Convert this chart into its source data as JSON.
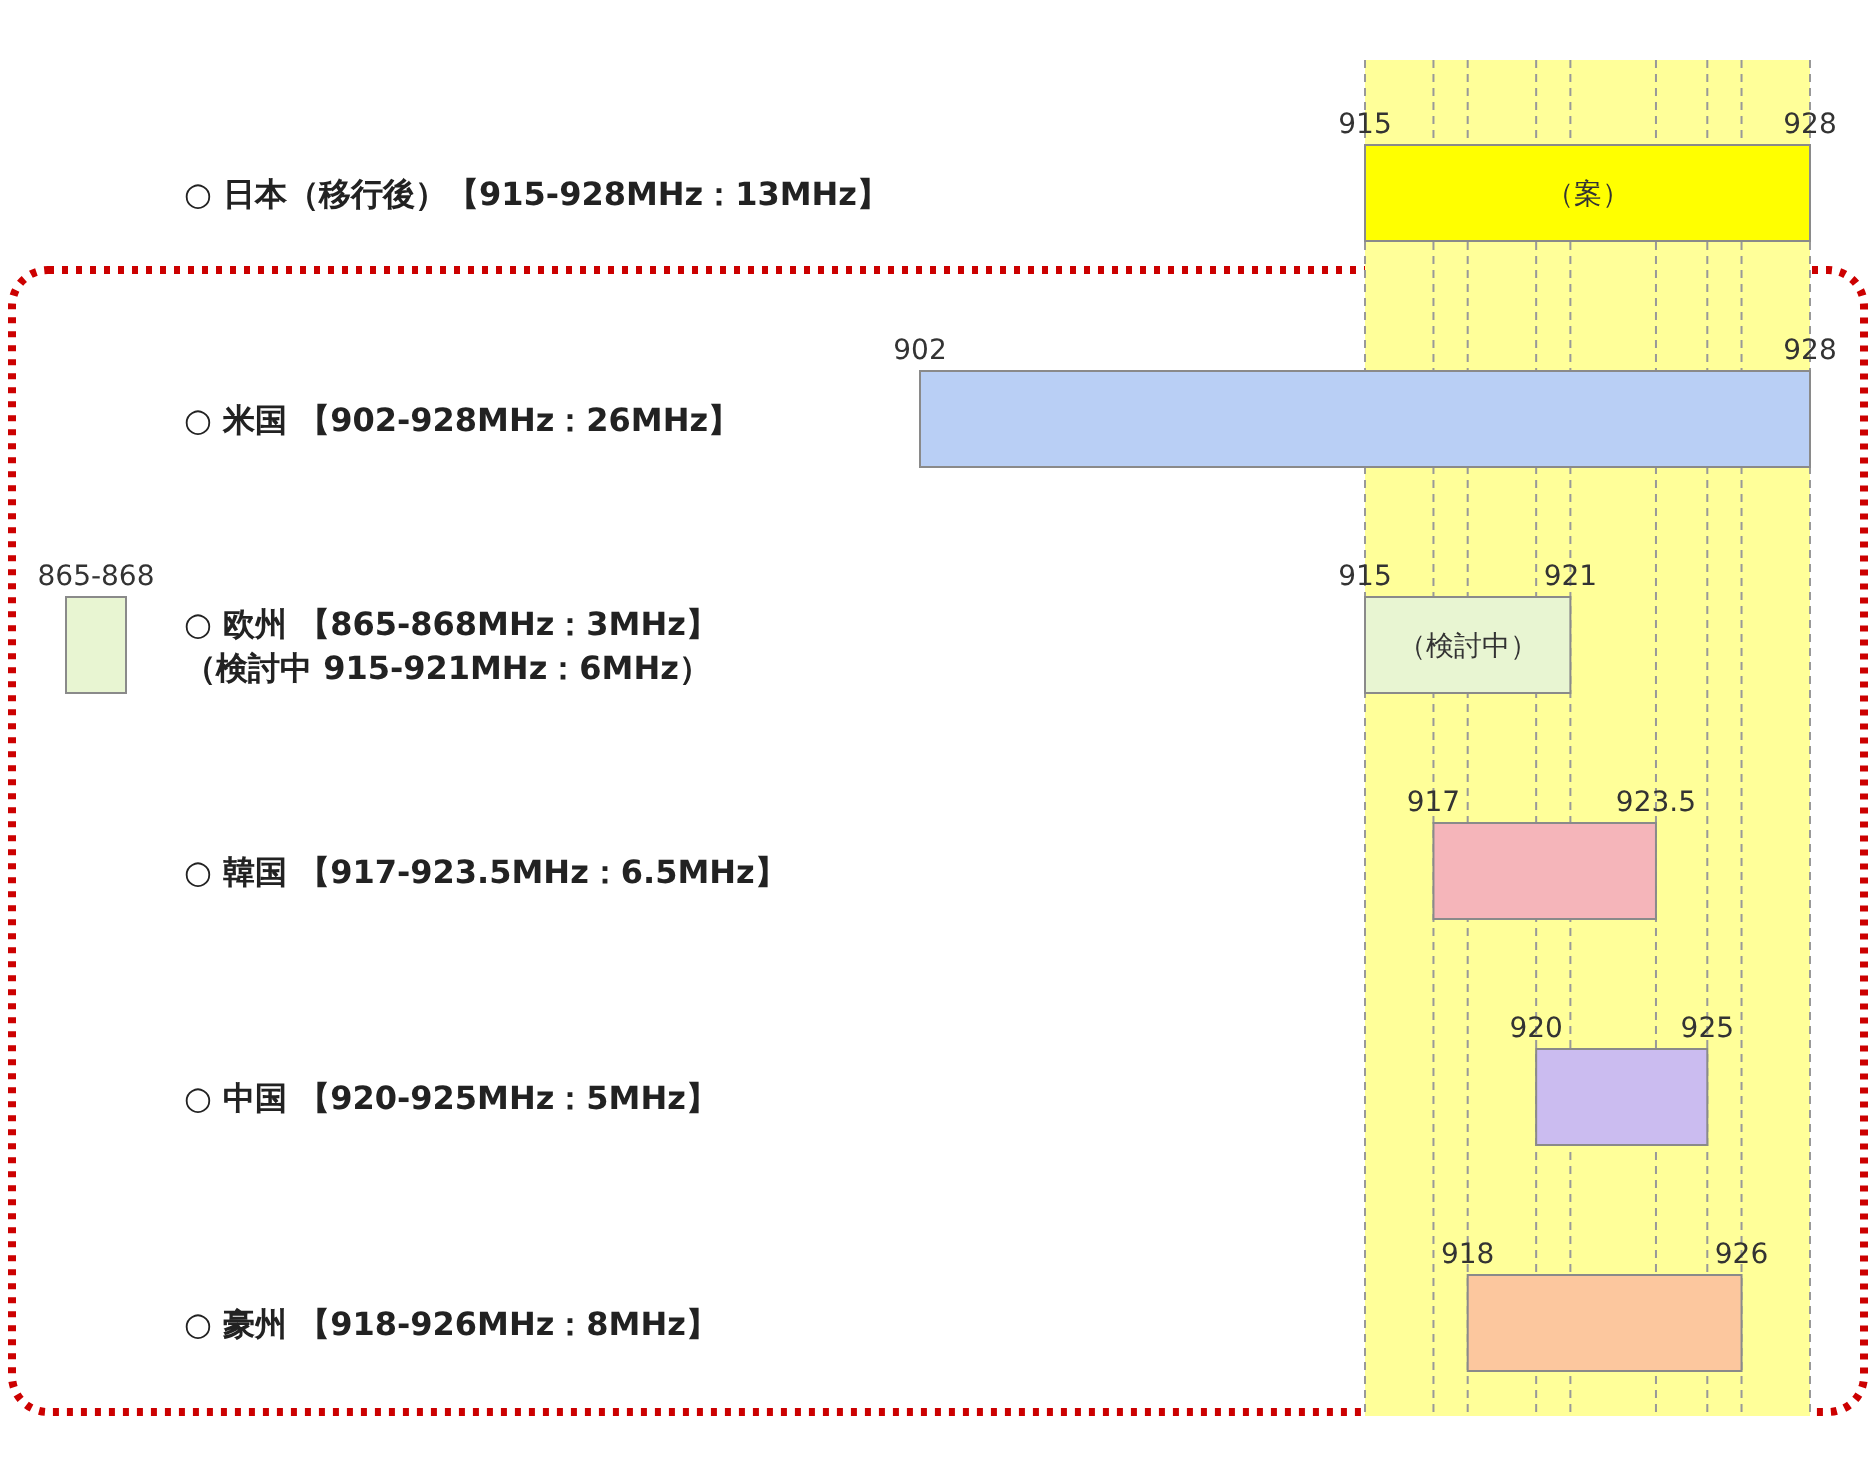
{
  "chart_data": [
    {
      "type": "bar",
      "orientation": "horizontal",
      "categories": [
        "○ 日本（移行後）【915-928MHz：13MHz】",
        "○ 米国 【902-928MHz：26MHz】",
        "○ 欧州 【865-868MHz：3MHz】（検討中 915-921MHz：6MHz）",
        "○ 韓国 【917-923.5MHz：6.5MHz】",
        "○ 中国 【920-925MHz：5MHz】",
        "○ 豪州 【918-926MHz：8MHz】"
      ],
      "base": [
        915,
        902,
        915,
        917,
        920,
        918
      ],
      "values": [
        13,
        26,
        6,
        6.5,
        5,
        8
      ],
      "colors": [
        "#ffff00",
        "#b9cff5",
        "#e8f5d2",
        "#f5b5ba",
        "#cbbcf0",
        "#fcc79e"
      ],
      "value_labels": [
        "（案）",
        null,
        "（検討中）",
        null,
        null,
        null
      ],
      "bands": [
        {
          "axis": "x",
          "from": 915,
          "to": 928,
          "color": "#ffff99"
        }
      ],
      "xlim": [
        902,
        928
      ],
      "xticks": [
        915,
        928
      ],
      "grid": "x",
      "ref_lines": [
        {
          "axis": "x",
          "value": 917,
          "line_style": "dashed",
          "color": "#999999"
        },
        {
          "axis": "x",
          "value": 918,
          "line_style": "dashed",
          "color": "#999999"
        },
        {
          "axis": "x",
          "value": 920,
          "line_style": "dashed",
          "color": "#999999"
        },
        {
          "axis": "x",
          "value": 921,
          "line_style": "dashed",
          "color": "#999999"
        },
        {
          "axis": "x",
          "value": 923.5,
          "line_style": "dashed",
          "color": "#999999"
        },
        {
          "axis": "x",
          "value": 925,
          "line_style": "dashed",
          "color": "#999999"
        },
        {
          "axis": "x",
          "value": 926,
          "line_style": "dashed",
          "color": "#999999"
        }
      ],
      "annotations": [
        {
          "text": "902",
          "x": 902,
          "y": "○ 米国 【902-928MHz：26MHz】"
        },
        {
          "text": "928",
          "x": 928,
          "y": "○ 米国 【902-928MHz：26MHz】"
        },
        {
          "text": "915",
          "x": 915,
          "y": "○ 欧州 【865-868MHz：3MHz】（検討中 915-921MHz：6MHz）"
        },
        {
          "text": "921",
          "x": 921,
          "y": "○ 欧州 【865-868MHz：3MHz】（検討中 915-921MHz：6MHz）"
        },
        {
          "text": "917",
          "x": 917,
          "y": "○ 韓国 【917-923.5MHz：6.5MHz】"
        },
        {
          "text": "923.5",
          "x": 923.5,
          "y": "○ 韓国 【917-923.5MHz：6.5MHz】"
        },
        {
          "text": "920",
          "x": 920,
          "y": "○ 中国 【920-925MHz：5MHz】"
        },
        {
          "text": "925",
          "x": 925,
          "y": "○ 中国 【920-925MHz：5MHz】"
        },
        {
          "text": "918",
          "x": 918,
          "y": "○ 豪州 【918-926MHz：8MHz】"
        },
        {
          "text": "926",
          "x": 926,
          "y": "○ 豪州 【918-926MHz：8MHz】"
        }
      ]
    },
    {
      "type": "other",
      "annotations": [
        "865-868"
      ]
    }
  ]
}
